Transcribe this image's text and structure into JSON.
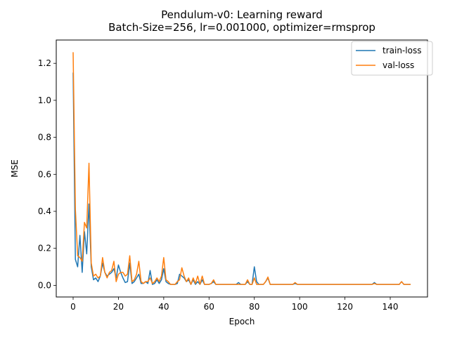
{
  "chart_data": {
    "type": "line",
    "title": "Pendulum-v0: Learning reward",
    "subtitle": "Batch-Size=256, lr=0.001000, optimizer=rmsprop",
    "xlabel": "Epoch",
    "ylabel": "MSE",
    "xlim": [
      -7.45,
      156.45
    ],
    "ylim": [
      -0.063,
      1.326
    ],
    "xticks": [
      0,
      20,
      40,
      60,
      80,
      100,
      120,
      140
    ],
    "yticks": [
      0.0,
      0.2,
      0.4,
      0.6,
      0.8,
      1.0,
      1.2
    ],
    "xtick_labels": [
      "0",
      "20",
      "40",
      "60",
      "80",
      "100",
      "120",
      "140"
    ],
    "ytick_labels": [
      "0.0",
      "0.2",
      "0.4",
      "0.6",
      "0.8",
      "1.0",
      "1.2"
    ],
    "grid": false,
    "legend_position": "top-right",
    "series": [
      {
        "name": "train-loss",
        "color": "#1f77b4",
        "x": [
          0,
          1,
          2,
          3,
          4,
          5,
          6,
          7,
          8,
          9,
          10,
          11,
          12,
          13,
          14,
          15,
          16,
          17,
          18,
          19,
          20,
          21,
          22,
          23,
          24,
          25,
          26,
          27,
          28,
          29,
          30,
          31,
          32,
          33,
          34,
          35,
          36,
          37,
          38,
          39,
          40,
          41,
          42,
          43,
          44,
          45,
          46,
          47,
          48,
          49,
          50,
          51,
          52,
          53,
          54,
          55,
          56,
          57,
          58,
          59,
          60,
          61,
          62,
          63,
          64,
          65,
          66,
          67,
          68,
          69,
          70,
          71,
          72,
          73,
          74,
          75,
          76,
          77,
          78,
          79,
          80,
          81,
          82,
          83,
          84,
          85,
          86,
          87,
          88,
          89,
          90,
          91,
          92,
          93,
          94,
          95,
          96,
          97,
          98,
          99,
          100,
          101,
          102,
          103,
          104,
          105,
          106,
          107,
          108,
          109,
          110,
          111,
          112,
          113,
          114,
          115,
          116,
          117,
          118,
          119,
          120,
          121,
          122,
          123,
          124,
          125,
          126,
          127,
          128,
          129,
          130,
          131,
          132,
          133,
          134,
          135,
          136,
          137,
          138,
          139,
          140,
          141,
          142,
          143,
          144,
          145,
          146,
          147,
          148,
          149
        ],
        "y": [
          1.15,
          0.14,
          0.1,
          0.27,
          0.07,
          0.29,
          0.17,
          0.44,
          0.1,
          0.03,
          0.04,
          0.02,
          0.05,
          0.12,
          0.07,
          0.05,
          0.06,
          0.07,
          0.09,
          0.04,
          0.11,
          0.07,
          0.04,
          0.015,
          0.02,
          0.12,
          0.01,
          0.02,
          0.04,
          0.06,
          0.01,
          0.01,
          0.02,
          0.01,
          0.08,
          0.005,
          0.01,
          0.03,
          0.01,
          0.03,
          0.09,
          0.02,
          0.01,
          0.005,
          0.005,
          0.005,
          0.01,
          0.06,
          0.05,
          0.04,
          0.02,
          0.03,
          0.005,
          0.03,
          0.005,
          0.02,
          0.005,
          0.03,
          0.005,
          0.005,
          0.005,
          0.01,
          0.02,
          0.005,
          0.005,
          0.005,
          0.005,
          0.005,
          0.005,
          0.005,
          0.005,
          0.005,
          0.005,
          0.015,
          0.005,
          0.005,
          0.005,
          0.02,
          0.005,
          0.005,
          0.1,
          0.02,
          0.005,
          0.005,
          0.005,
          0.02,
          0.04,
          0.005,
          0.005,
          0.005,
          0.005,
          0.005,
          0.005,
          0.005,
          0.005,
          0.005,
          0.005,
          0.005,
          0.01,
          0.005,
          0.005,
          0.005,
          0.005,
          0.005,
          0.005,
          0.005,
          0.005,
          0.005,
          0.005,
          0.005,
          0.005,
          0.005,
          0.005,
          0.005,
          0.005,
          0.005,
          0.005,
          0.005,
          0.005,
          0.005,
          0.005,
          0.005,
          0.005,
          0.005,
          0.005,
          0.005,
          0.005,
          0.005,
          0.005,
          0.005,
          0.005,
          0.005,
          0.005,
          0.015,
          0.005,
          0.005,
          0.005,
          0.005,
          0.005,
          0.005,
          0.005,
          0.005,
          0.005,
          0.005,
          0.005,
          0.02,
          0.005,
          0.005,
          0.005,
          0.005
        ]
      },
      {
        "name": "val-loss",
        "color": "#ff7f0e",
        "x": [
          0,
          1,
          2,
          3,
          4,
          5,
          6,
          7,
          8,
          9,
          10,
          11,
          12,
          13,
          14,
          15,
          16,
          17,
          18,
          19,
          20,
          21,
          22,
          23,
          24,
          25,
          26,
          27,
          28,
          29,
          30,
          31,
          32,
          33,
          34,
          35,
          36,
          37,
          38,
          39,
          40,
          41,
          42,
          43,
          44,
          45,
          46,
          47,
          48,
          49,
          50,
          51,
          52,
          53,
          54,
          55,
          56,
          57,
          58,
          59,
          60,
          61,
          62,
          63,
          64,
          65,
          66,
          67,
          68,
          69,
          70,
          71,
          72,
          73,
          74,
          75,
          76,
          77,
          78,
          79,
          80,
          81,
          82,
          83,
          84,
          85,
          86,
          87,
          88,
          89,
          90,
          91,
          92,
          93,
          94,
          95,
          96,
          97,
          98,
          99,
          100,
          101,
          102,
          103,
          104,
          105,
          106,
          107,
          108,
          109,
          110,
          111,
          112,
          113,
          114,
          115,
          116,
          117,
          118,
          119,
          120,
          121,
          122,
          123,
          124,
          125,
          126,
          127,
          128,
          129,
          130,
          131,
          132,
          133,
          134,
          135,
          136,
          137,
          138,
          139,
          140,
          141,
          142,
          143,
          144,
          145,
          146,
          147,
          148,
          149
        ],
        "y": [
          1.26,
          0.41,
          0.16,
          0.15,
          0.13,
          0.34,
          0.31,
          0.66,
          0.12,
          0.05,
          0.06,
          0.04,
          0.05,
          0.15,
          0.07,
          0.04,
          0.07,
          0.08,
          0.13,
          0.02,
          0.06,
          0.07,
          0.07,
          0.05,
          0.06,
          0.16,
          0.02,
          0.03,
          0.06,
          0.13,
          0.02,
          0.01,
          0.02,
          0.02,
          0.04,
          0.01,
          0.02,
          0.04,
          0.02,
          0.05,
          0.15,
          0.03,
          0.02,
          0.005,
          0.005,
          0.005,
          0.02,
          0.03,
          0.095,
          0.05,
          0.02,
          0.04,
          0.005,
          0.04,
          0.01,
          0.05,
          0.005,
          0.05,
          0.005,
          0.005,
          0.005,
          0.01,
          0.03,
          0.005,
          0.005,
          0.005,
          0.005,
          0.005,
          0.005,
          0.005,
          0.005,
          0.005,
          0.005,
          0.005,
          0.005,
          0.005,
          0.005,
          0.03,
          0.005,
          0.005,
          0.04,
          0.005,
          0.005,
          0.005,
          0.005,
          0.02,
          0.045,
          0.005,
          0.005,
          0.005,
          0.005,
          0.005,
          0.005,
          0.005,
          0.005,
          0.005,
          0.005,
          0.005,
          0.015,
          0.005,
          0.005,
          0.005,
          0.005,
          0.005,
          0.005,
          0.005,
          0.005,
          0.005,
          0.005,
          0.005,
          0.005,
          0.005,
          0.005,
          0.005,
          0.005,
          0.005,
          0.005,
          0.005,
          0.005,
          0.005,
          0.005,
          0.005,
          0.005,
          0.005,
          0.005,
          0.005,
          0.005,
          0.005,
          0.005,
          0.005,
          0.005,
          0.005,
          0.005,
          0.01,
          0.005,
          0.005,
          0.005,
          0.005,
          0.005,
          0.005,
          0.005,
          0.005,
          0.005,
          0.005,
          0.005,
          0.02,
          0.005,
          0.005,
          0.005,
          0.005
        ]
      }
    ]
  }
}
